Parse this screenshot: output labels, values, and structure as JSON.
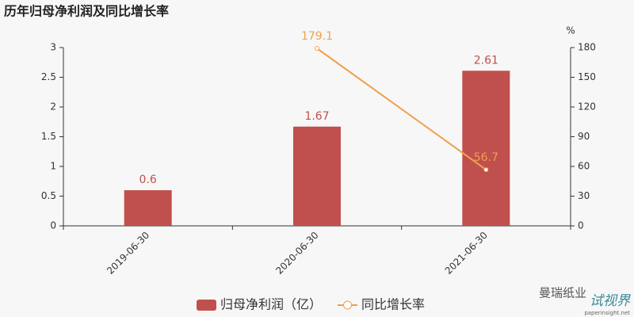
{
  "chart_data": {
    "type": "bar_line",
    "title": "历年归母净利润及同比增长率",
    "categories": [
      "2019-06-30",
      "2020-06-30",
      "2021-06-30"
    ],
    "series": [
      {
        "name": "归母净利润（亿）",
        "type": "bar",
        "color": "#c0504d",
        "values": [
          0.6,
          1.67,
          2.61
        ]
      },
      {
        "name": "同比增长率",
        "type": "line",
        "axis": "y2",
        "color": "#f0a04b",
        "values": [
          null,
          179.1,
          56.7
        ]
      }
    ],
    "ylim": [
      0,
      3
    ],
    "yticks": [
      0,
      0.5,
      1,
      1.5,
      2,
      2.5,
      3
    ],
    "y2lim": [
      0,
      180
    ],
    "y2ticks": [
      0,
      30,
      60,
      90,
      120,
      150,
      180
    ],
    "y2label": "%",
    "watermarks": [
      "曼瑞纸业",
      "试视界",
      "paperinsight.net"
    ]
  }
}
